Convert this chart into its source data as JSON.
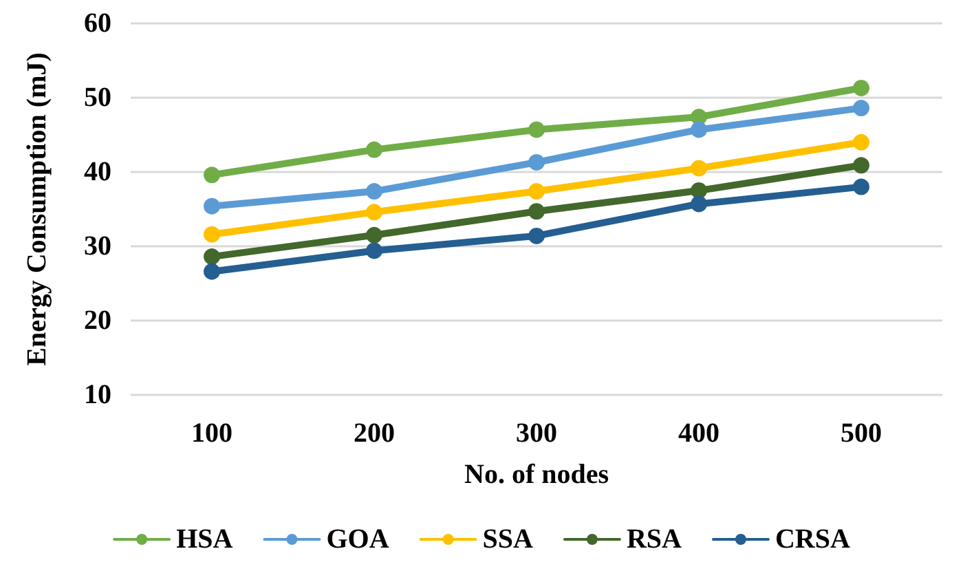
{
  "chart_data": {
    "type": "line",
    "xlabel": "No. of nodes",
    "ylabel": "Energy Consumption (mJ)",
    "categories": [
      "100",
      "200",
      "300",
      "400",
      "500"
    ],
    "series": [
      {
        "name": "HSA",
        "color": "#70ad47",
        "values": [
          39.6,
          43.0,
          45.7,
          47.4,
          51.3
        ]
      },
      {
        "name": "GOA",
        "color": "#5b9bd5",
        "values": [
          35.4,
          37.4,
          41.3,
          45.7,
          48.6
        ]
      },
      {
        "name": "SSA",
        "color": "#ffc000",
        "values": [
          31.6,
          34.6,
          37.4,
          40.5,
          44.0
        ]
      },
      {
        "name": "RSA",
        "color": "#43682b",
        "values": [
          28.6,
          31.5,
          34.7,
          37.5,
          40.9
        ]
      },
      {
        "name": "CRSA",
        "color": "#255e91",
        "values": [
          26.6,
          29.4,
          31.4,
          35.7,
          38.0
        ]
      }
    ],
    "ylim": [
      10,
      60
    ],
    "yticks": [
      10,
      20,
      30,
      40,
      50,
      60
    ],
    "grid": "y",
    "legend": "bottom",
    "marker": "circle",
    "line_style": "solid"
  }
}
